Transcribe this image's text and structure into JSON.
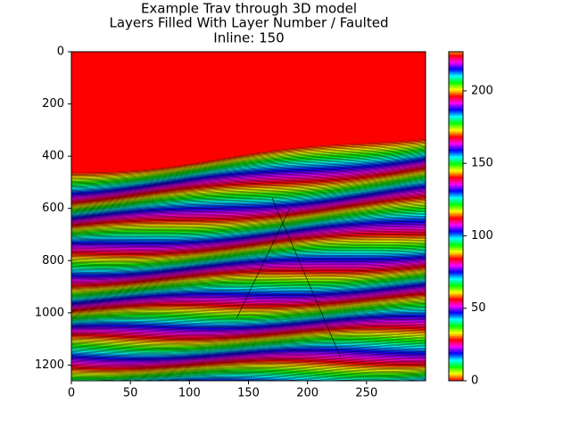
{
  "chart_data": {
    "type": "image",
    "title": "Example Trav through 3D model",
    "subtitle": "Layers Filled With Layer Number / Faulted",
    "annotation": "Inline: 150",
    "xlim": [
      0,
      300
    ],
    "xticks": [
      0,
      50,
      100,
      150,
      200,
      250
    ],
    "ylim": [
      1260,
      0
    ],
    "yticks": [
      0,
      200,
      400,
      600,
      800,
      1000,
      1200
    ],
    "clim": [
      0,
      227
    ],
    "cticks": [
      0,
      50,
      100,
      150,
      200
    ],
    "colormap": [
      "#ff0000",
      "#ffff00",
      "#00ff00",
      "#00ffff",
      "#0000ff",
      "#ff00ff"
    ]
  }
}
